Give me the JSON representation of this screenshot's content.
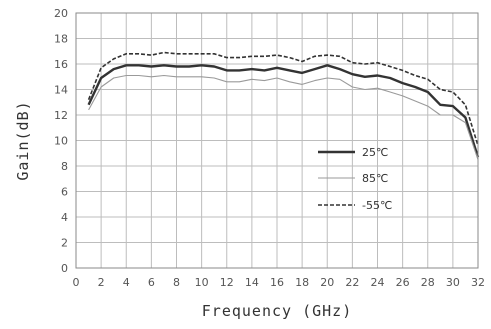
{
  "chart_data": {
    "type": "line",
    "title": "",
    "xlabel": "Frequency (GHz)",
    "ylabel": "Gain(dB)",
    "xlim": [
      0,
      32
    ],
    "ylim": [
      0,
      20
    ],
    "xticks": [
      0,
      2,
      4,
      6,
      8,
      10,
      12,
      14,
      16,
      18,
      20,
      22,
      24,
      26,
      28,
      30,
      32
    ],
    "yticks": [
      0,
      2,
      4,
      6,
      8,
      10,
      12,
      14,
      16,
      18,
      20
    ],
    "grid": true,
    "legend_position": "lower-right",
    "series": [
      {
        "name": "25℃",
        "color": "#333333",
        "style": "solid-thick",
        "x": [
          1,
          2,
          3,
          4,
          5,
          6,
          7,
          8,
          9,
          10,
          11,
          12,
          13,
          14,
          15,
          16,
          17,
          18,
          19,
          20,
          21,
          22,
          23,
          24,
          25,
          26,
          27,
          28,
          29,
          30,
          31,
          32
        ],
        "y": [
          12.8,
          14.9,
          15.6,
          15.9,
          15.9,
          15.8,
          15.9,
          15.8,
          15.8,
          15.9,
          15.8,
          15.5,
          15.5,
          15.6,
          15.5,
          15.7,
          15.5,
          15.3,
          15.6,
          15.9,
          15.6,
          15.2,
          15.0,
          15.1,
          14.9,
          14.5,
          14.2,
          13.8,
          12.8,
          12.7,
          11.8,
          8.7
        ]
      },
      {
        "name": "85℃",
        "color": "#9a9a9a",
        "style": "solid-thin",
        "x": [
          1,
          2,
          3,
          4,
          5,
          6,
          7,
          8,
          9,
          10,
          11,
          12,
          13,
          14,
          15,
          16,
          17,
          18,
          19,
          20,
          21,
          22,
          23,
          24,
          25,
          26,
          27,
          28,
          29,
          30,
          31,
          32
        ],
        "y": [
          12.4,
          14.2,
          14.9,
          15.1,
          15.1,
          15.0,
          15.1,
          15.0,
          15.0,
          15.0,
          14.9,
          14.6,
          14.6,
          14.8,
          14.7,
          14.9,
          14.6,
          14.4,
          14.7,
          14.9,
          14.8,
          14.2,
          14.0,
          14.1,
          13.8,
          13.5,
          13.1,
          12.7,
          12.0,
          12.0,
          11.4,
          8.5
        ]
      },
      {
        "name": "-55℃",
        "color": "#333333",
        "style": "dashed",
        "x": [
          1,
          2,
          3,
          4,
          5,
          6,
          7,
          8,
          9,
          10,
          11,
          12,
          13,
          14,
          15,
          16,
          17,
          18,
          19,
          20,
          21,
          22,
          23,
          24,
          25,
          26,
          27,
          28,
          29,
          30,
          31,
          32
        ],
        "y": [
          13.2,
          15.7,
          16.4,
          16.8,
          16.8,
          16.7,
          16.9,
          16.8,
          16.8,
          16.8,
          16.8,
          16.5,
          16.5,
          16.6,
          16.6,
          16.7,
          16.5,
          16.2,
          16.6,
          16.7,
          16.6,
          16.1,
          16.0,
          16.1,
          15.8,
          15.5,
          15.1,
          14.8,
          14.0,
          13.8,
          12.8,
          9.6
        ]
      }
    ]
  }
}
